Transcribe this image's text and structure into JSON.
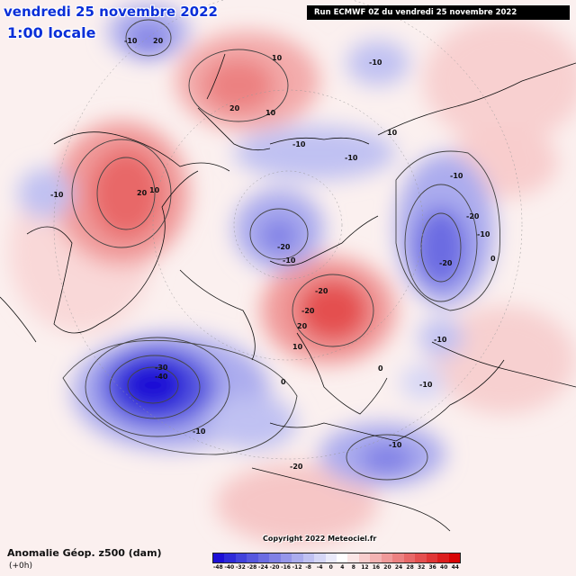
{
  "header": {
    "date_title": "vendredi 25 novembre 2022",
    "time_title": "1:00 locale",
    "run_info": "Run ECMWF 0Z du vendredi 25 novembre 2022"
  },
  "footer": {
    "field_title": "Anomalie Géop. z500 (dam)",
    "lead_time": "(+0h)",
    "copyright": "Copyright 2022 Meteociel.fr"
  },
  "legend": {
    "colors": [
      "#1d0fd6",
      "#2e2ad9",
      "#4242dc",
      "#5757df",
      "#6c6ce2",
      "#8181e6",
      "#9696ea",
      "#abacee",
      "#c0c1f2",
      "#d5d6f6",
      "#eaeafa",
      "#ffffff",
      "#fbe6e6",
      "#f8cdcd",
      "#f4b3b3",
      "#f09a9a",
      "#ec8181",
      "#e86868",
      "#e44f4f",
      "#e03636",
      "#dc1d1d",
      "#d80404"
    ],
    "ticks": [
      "-48",
      "-40",
      "-32",
      "-28",
      "-24",
      "-20",
      "-16",
      "-12",
      "-8",
      "-4",
      "0",
      "4",
      "8",
      "12",
      "16",
      "20",
      "24",
      "28",
      "32",
      "36",
      "40",
      "44"
    ]
  },
  "contour_labels": [
    "-10",
    "20",
    "10",
    "-10",
    "20",
    "10",
    "10",
    "-10",
    "-10",
    "20",
    "10",
    "-10",
    "-10",
    "-20",
    "-10",
    "-20",
    "-20",
    "-10",
    "-10",
    "-20",
    "-20",
    "20",
    "10",
    "0",
    "-30",
    "-40",
    "-10",
    "-10",
    "-10",
    "0",
    "-20",
    "0"
  ]
}
